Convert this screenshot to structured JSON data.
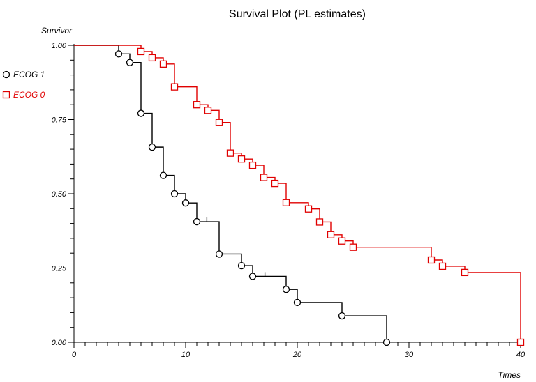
{
  "chart_data": {
    "type": "line",
    "step": true,
    "title": "Survival Plot (PL estimates)",
    "xlabel": "Times",
    "ylabel": "Survivor",
    "xlim": [
      0,
      40
    ],
    "ylim": [
      0,
      1
    ],
    "xticks": [
      0,
      10,
      20,
      30,
      40
    ],
    "xtick_labels": [
      "0",
      "10",
      "20",
      "30",
      "40"
    ],
    "yticks": [
      0,
      0.25,
      0.5,
      0.75,
      1
    ],
    "ytick_labels": [
      "0.00",
      "0.25",
      "0.50",
      "0.75",
      "1.00"
    ],
    "grid": false,
    "legend_position": "left",
    "series": [
      {
        "name": "ECOG 1",
        "color": "#000000",
        "marker": "circle",
        "steps": [
          [
            0,
            1.0
          ],
          [
            4,
            0.971
          ],
          [
            5,
            0.942
          ],
          [
            6,
            0.771
          ],
          [
            7,
            0.657
          ],
          [
            8,
            0.562
          ],
          [
            9,
            0.5
          ],
          [
            10,
            0.469
          ],
          [
            11,
            0.406
          ],
          [
            13,
            0.297
          ],
          [
            15,
            0.258
          ],
          [
            16,
            0.222
          ],
          [
            19,
            0.178
          ],
          [
            20,
            0.134
          ],
          [
            24,
            0.089
          ],
          [
            28,
            0.0
          ]
        ],
        "events": [
          [
            4,
            0.971
          ],
          [
            5,
            0.942
          ],
          [
            6,
            0.771
          ],
          [
            7,
            0.657
          ],
          [
            8,
            0.562
          ],
          [
            9,
            0.5
          ],
          [
            10,
            0.469
          ],
          [
            11,
            0.406
          ],
          [
            13,
            0.297
          ],
          [
            15,
            0.258
          ],
          [
            16,
            0.222
          ],
          [
            19,
            0.178
          ],
          [
            20,
            0.134
          ],
          [
            24,
            0.089
          ],
          [
            28,
            0.0
          ]
        ],
        "censored": [
          [
            11.9,
            0.406
          ],
          [
            17.1,
            0.222
          ]
        ]
      },
      {
        "name": "ECOG 0",
        "color": "#e00000",
        "marker": "square",
        "steps": [
          [
            0,
            1.0
          ],
          [
            6,
            0.979
          ],
          [
            7,
            0.958
          ],
          [
            8,
            0.937
          ],
          [
            9,
            0.86
          ],
          [
            11,
            0.8
          ],
          [
            12,
            0.781
          ],
          [
            13,
            0.74
          ],
          [
            14,
            0.637
          ],
          [
            15,
            0.617
          ],
          [
            16,
            0.596
          ],
          [
            17,
            0.555
          ],
          [
            18,
            0.535
          ],
          [
            19,
            0.47
          ],
          [
            21,
            0.449
          ],
          [
            22,
            0.405
          ],
          [
            23,
            0.362
          ],
          [
            24,
            0.341
          ],
          [
            25,
            0.32
          ],
          [
            32,
            0.277
          ],
          [
            33,
            0.256
          ],
          [
            35,
            0.235
          ],
          [
            40,
            0.0
          ]
        ],
        "events": [
          [
            6,
            0.979
          ],
          [
            7,
            0.958
          ],
          [
            8,
            0.937
          ],
          [
            9,
            0.86
          ],
          [
            11,
            0.8
          ],
          [
            12,
            0.781
          ],
          [
            13,
            0.74
          ],
          [
            14,
            0.637
          ],
          [
            15,
            0.617
          ],
          [
            16,
            0.596
          ],
          [
            17,
            0.555
          ],
          [
            18,
            0.535
          ],
          [
            19,
            0.47
          ],
          [
            21,
            0.449
          ],
          [
            22,
            0.405
          ],
          [
            23,
            0.362
          ],
          [
            24,
            0.341
          ],
          [
            25,
            0.32
          ],
          [
            32,
            0.277
          ],
          [
            33,
            0.256
          ],
          [
            35,
            0.235
          ],
          [
            40,
            0.0
          ]
        ],
        "censored": []
      }
    ]
  }
}
